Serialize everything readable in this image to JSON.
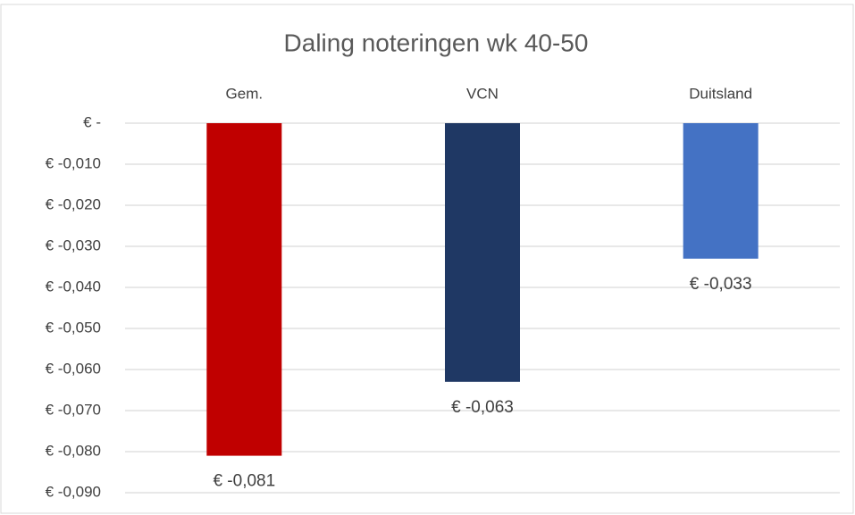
{
  "chart_data": {
    "type": "bar",
    "title": "Daling noteringen wk 40-50",
    "categories": [
      "Gem.",
      "VCN",
      "Duitsland"
    ],
    "values": [
      -0.081,
      -0.063,
      -0.033
    ],
    "value_labels": [
      "€ -0,081",
      "€ -0,063",
      "€ -0,033"
    ],
    "colors": [
      "#c00000",
      "#1f3864",
      "#4472c4"
    ],
    "ylim": [
      -0.09,
      0
    ],
    "yticks": [
      {
        "value": 0,
        "label": "€ -"
      },
      {
        "value": -0.01,
        "label": "€ -0,010"
      },
      {
        "value": -0.02,
        "label": "€ -0,020"
      },
      {
        "value": -0.03,
        "label": "€ -0,030"
      },
      {
        "value": -0.04,
        "label": "€ -0,040"
      },
      {
        "value": -0.05,
        "label": "€ -0,050"
      },
      {
        "value": -0.06,
        "label": "€ -0,060"
      },
      {
        "value": -0.07,
        "label": "€ -0,070"
      },
      {
        "value": -0.08,
        "label": "€ -0,080"
      },
      {
        "value": -0.09,
        "label": "€ -0,090"
      }
    ],
    "grid": true
  }
}
